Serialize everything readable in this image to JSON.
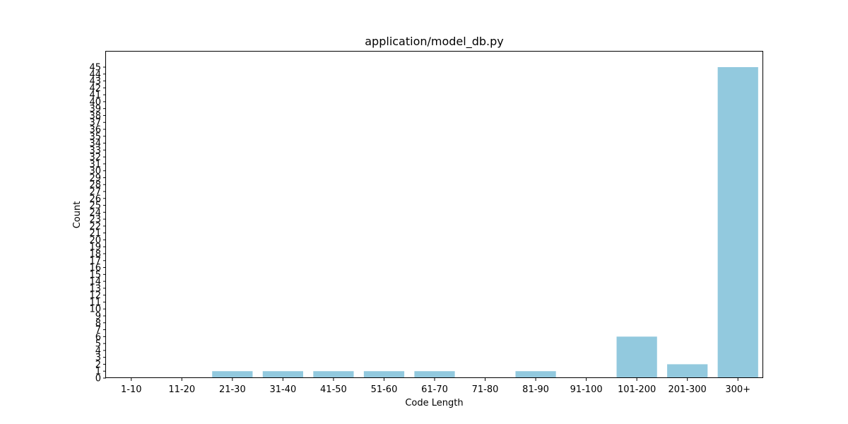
{
  "chart_data": {
    "type": "bar",
    "title": "application/model_db.py",
    "xlabel": "Code Length",
    "ylabel": "Count",
    "categories": [
      "1-10",
      "11-20",
      "21-30",
      "31-40",
      "41-50",
      "51-60",
      "61-70",
      "71-80",
      "81-90",
      "91-100",
      "101-200",
      "201-300",
      "300+"
    ],
    "values": [
      0,
      0,
      1,
      1,
      1,
      1,
      1,
      0,
      1,
      0,
      6,
      2,
      45
    ],
    "ylim": [
      0,
      47.25
    ],
    "yticks": [
      0,
      1,
      2,
      3,
      4,
      5,
      6,
      7,
      8,
      9,
      10,
      11,
      12,
      13,
      14,
      15,
      16,
      17,
      18,
      19,
      20,
      21,
      22,
      23,
      24,
      25,
      26,
      27,
      28,
      29,
      30,
      31,
      32,
      33,
      34,
      35,
      36,
      37,
      38,
      39,
      40,
      41,
      42,
      43,
      44,
      45
    ],
    "bar_color": "#92c9de",
    "grid": false,
    "legend": "none"
  }
}
